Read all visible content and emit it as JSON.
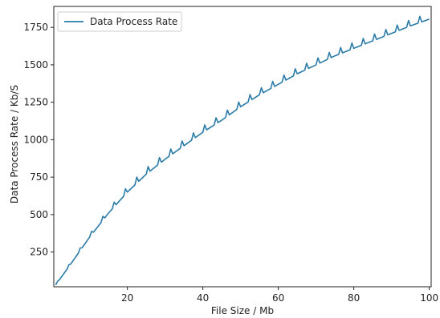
{
  "chart_data": {
    "type": "line",
    "title": "",
    "xlabel": "File Size / Mb",
    "ylabel": "Data Process Rate / Kb/S",
    "xlim": [
      0.5,
      100.5
    ],
    "ylim": [
      18,
      1890
    ],
    "xticks": [
      20,
      40,
      60,
      80,
      100
    ],
    "yticks": [
      250,
      500,
      750,
      1000,
      1250,
      1500,
      1750
    ],
    "grid": false,
    "legend": {
      "position": "top-left",
      "entries": [
        "Data Process Rate"
      ]
    },
    "series": [
      {
        "name": "Data Process Rate",
        "color": "#2a7ba8",
        "x": [
          1,
          5,
          10,
          15,
          20,
          25,
          30,
          35,
          40,
          45,
          50,
          55,
          60,
          65,
          70,
          75,
          80,
          85,
          90,
          95,
          100
        ],
        "y": [
          30,
          170,
          350,
          510,
          650,
          770,
          870,
          960,
          1050,
          1130,
          1220,
          1300,
          1370,
          1440,
          1500,
          1560,
          1610,
          1660,
          1710,
          1760,
          1805
        ],
        "spike_every": 3,
        "spike_height": 45
      }
    ]
  }
}
